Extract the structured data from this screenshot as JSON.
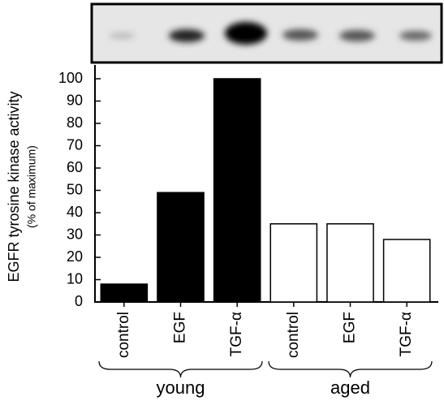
{
  "chart_data": {
    "type": "bar",
    "y_label": "EGFR tyrosine kinase activity",
    "y_sublabel": "(% of maximum)",
    "categories": [
      "control",
      "EGF",
      "TGF-α",
      "control",
      "EGF",
      "TGF-α"
    ],
    "series": [
      {
        "name": "young",
        "color": "#000000",
        "values": [
          8,
          49,
          100,
          null,
          null,
          null
        ]
      },
      {
        "name": "aged",
        "color": "#ffffff",
        "values": [
          null,
          null,
          null,
          35,
          35,
          28
        ]
      }
    ],
    "ylim": [
      0,
      100
    ],
    "yticks": [
      0,
      10,
      20,
      30,
      40,
      50,
      60,
      70,
      80,
      90,
      100
    ]
  }
}
